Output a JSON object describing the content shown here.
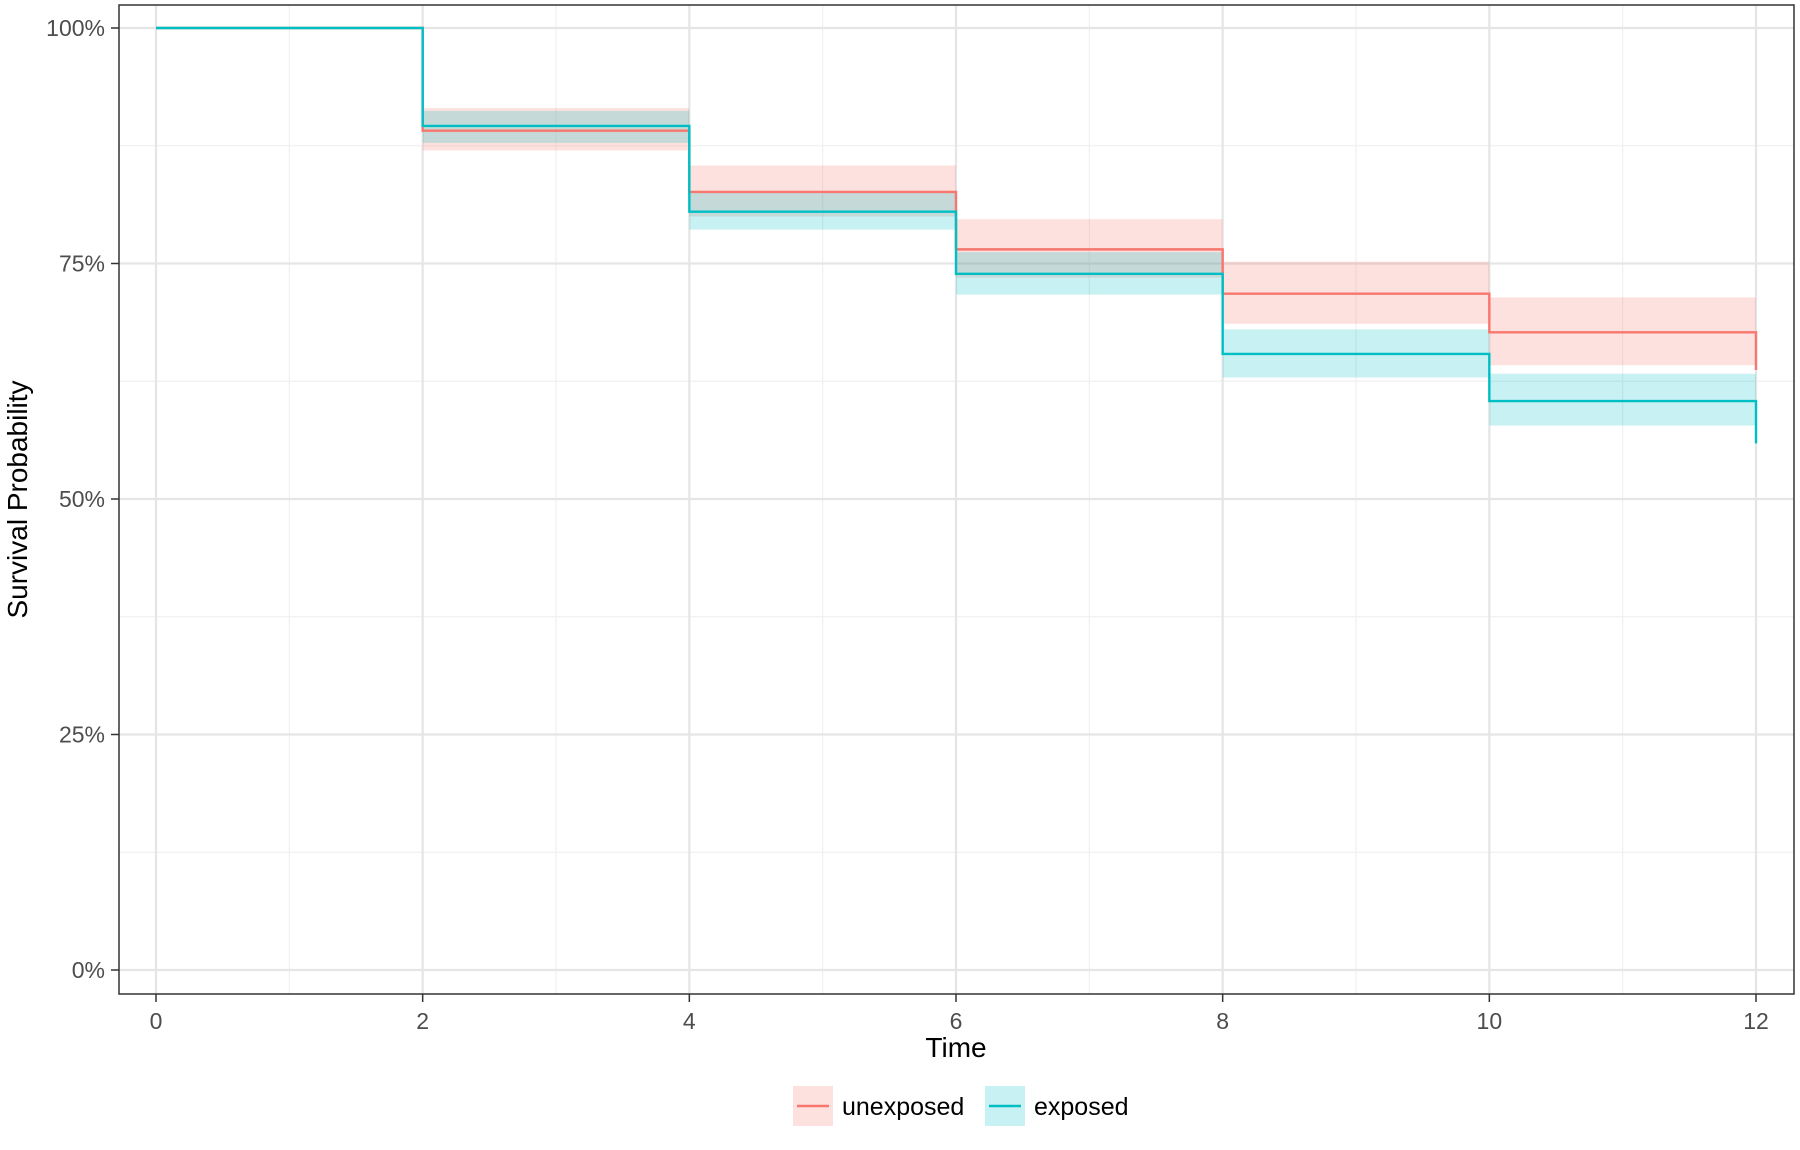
{
  "chart_data": {
    "type": "line",
    "subtype": "kaplan-meier step curve with confidence bands",
    "title": "",
    "xlabel": "Time",
    "ylabel": "Survival Probability",
    "xlim": [
      0,
      12
    ],
    "ylim": [
      0,
      1
    ],
    "x_ticks": [
      0,
      2,
      4,
      6,
      8,
      10,
      12
    ],
    "x_tick_labels": [
      "0",
      "2",
      "4",
      "6",
      "8",
      "10",
      "12"
    ],
    "y_ticks": [
      0,
      0.25,
      0.5,
      0.75,
      1.0
    ],
    "y_tick_labels": [
      "0%",
      "25%",
      "50%",
      "75%",
      "100%"
    ],
    "grid": true,
    "legend_position": "bottom",
    "series": [
      {
        "name": "unexposed",
        "color": "#F8766D",
        "band_color": "#F8766D",
        "steps": [
          {
            "x0": 0,
            "x1": 2,
            "y": 1.0,
            "lower": 1.0,
            "upper": 1.0
          },
          {
            "x0": 2,
            "x1": 4,
            "y": 0.891,
            "lower": 0.87,
            "upper": 0.915
          },
          {
            "x0": 4,
            "x1": 6,
            "y": 0.826,
            "lower": 0.8,
            "upper": 0.854
          },
          {
            "x0": 6,
            "x1": 8,
            "y": 0.765,
            "lower": 0.735,
            "upper": 0.797
          },
          {
            "x0": 8,
            "x1": 10,
            "y": 0.718,
            "lower": 0.686,
            "upper": 0.752
          },
          {
            "x0": 10,
            "x1": 12,
            "y": 0.677,
            "lower": 0.642,
            "upper": 0.714
          }
        ],
        "final_drop": 0.637
      },
      {
        "name": "exposed",
        "color": "#00BFC4",
        "band_color": "#00BFC4",
        "steps": [
          {
            "x0": 0,
            "x1": 2,
            "y": 1.0,
            "lower": 1.0,
            "upper": 1.0
          },
          {
            "x0": 2,
            "x1": 4,
            "y": 0.896,
            "lower": 0.878,
            "upper": 0.912
          },
          {
            "x0": 4,
            "x1": 6,
            "y": 0.805,
            "lower": 0.786,
            "upper": 0.826
          },
          {
            "x0": 6,
            "x1": 8,
            "y": 0.739,
            "lower": 0.717,
            "upper": 0.762
          },
          {
            "x0": 8,
            "x1": 10,
            "y": 0.654,
            "lower": 0.629,
            "upper": 0.68
          },
          {
            "x0": 10,
            "x1": 12,
            "y": 0.604,
            "lower": 0.578,
            "upper": 0.633
          }
        ],
        "final_drop": 0.559
      }
    ]
  }
}
